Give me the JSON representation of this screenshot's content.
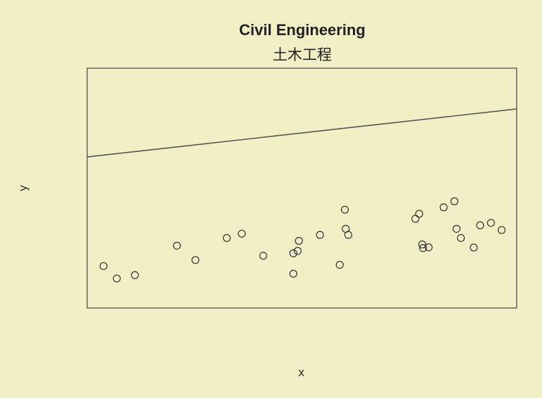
{
  "chart_data": {
    "type": "scatter",
    "title": "Civil Engineering",
    "subtitle": "土木工程",
    "xlabel": "x",
    "ylabel": "y",
    "xlim": [
      0,
      100
    ],
    "ylim": [
      0,
      100
    ],
    "grid": false,
    "line": {
      "x": [
        0,
        100
      ],
      "y": [
        63,
        83
      ]
    },
    "points": [
      {
        "x": 3.8,
        "y": 17.5
      },
      {
        "x": 6.9,
        "y": 12.3
      },
      {
        "x": 11.1,
        "y": 13.7
      },
      {
        "x": 20.9,
        "y": 26.0
      },
      {
        "x": 25.2,
        "y": 20.0
      },
      {
        "x": 32.5,
        "y": 29.2
      },
      {
        "x": 36.0,
        "y": 31.0
      },
      {
        "x": 41.0,
        "y": 21.8
      },
      {
        "x": 48.0,
        "y": 22.8
      },
      {
        "x": 48.0,
        "y": 14.3
      },
      {
        "x": 49.0,
        "y": 23.8
      },
      {
        "x": 49.3,
        "y": 28.0
      },
      {
        "x": 54.2,
        "y": 30.5
      },
      {
        "x": 58.8,
        "y": 18.0
      },
      {
        "x": 60.0,
        "y": 41.0
      },
      {
        "x": 60.2,
        "y": 33.0
      },
      {
        "x": 60.8,
        "y": 30.5
      },
      {
        "x": 76.4,
        "y": 37.2
      },
      {
        "x": 77.3,
        "y": 39.3
      },
      {
        "x": 78.0,
        "y": 26.5
      },
      {
        "x": 78.2,
        "y": 25.0
      },
      {
        "x": 79.5,
        "y": 25.3
      },
      {
        "x": 83.0,
        "y": 42.0
      },
      {
        "x": 85.5,
        "y": 44.5
      },
      {
        "x": 86.0,
        "y": 33.0
      },
      {
        "x": 87.0,
        "y": 29.2
      },
      {
        "x": 90.0,
        "y": 25.2
      },
      {
        "x": 91.5,
        "y": 34.5
      },
      {
        "x": 94.0,
        "y": 35.5
      },
      {
        "x": 96.5,
        "y": 32.5
      }
    ]
  }
}
